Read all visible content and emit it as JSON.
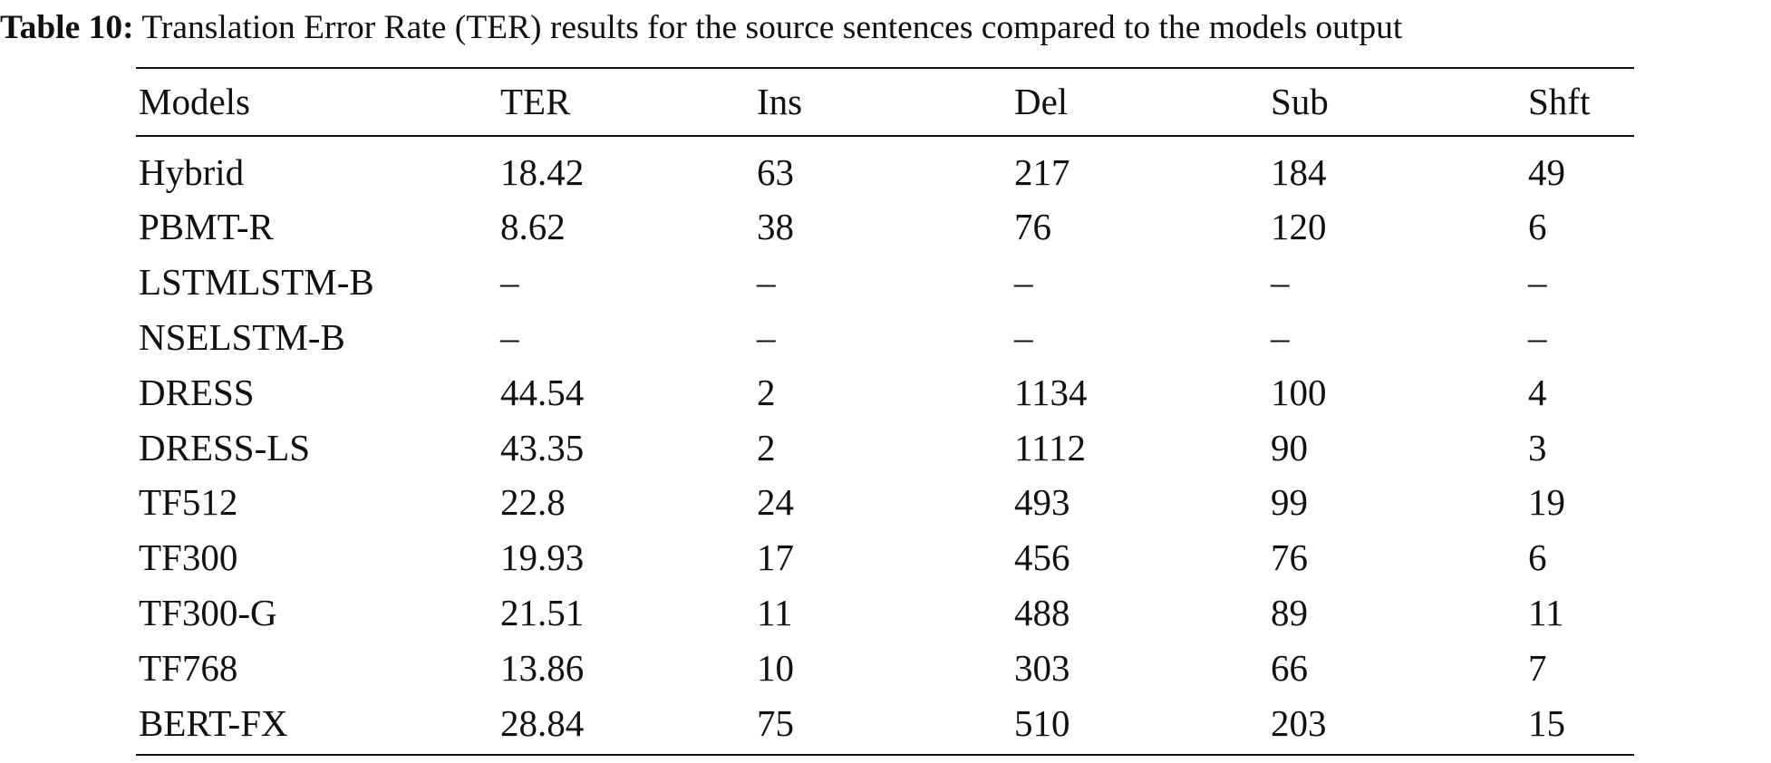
{
  "caption": {
    "label": "Table 10:",
    "text": "Translation Error Rate (TER) results for the source sentences compared to the models output"
  },
  "table": {
    "header": [
      "Models",
      "TER",
      "Ins",
      "Del",
      "Sub",
      "Shft"
    ],
    "rows": [
      [
        "Hybrid",
        "18.42",
        "63",
        "217",
        "184",
        "49"
      ],
      [
        "PBMT-R",
        "8.62",
        "38",
        "76",
        "120",
        "6"
      ],
      [
        "LSTMLSTM-B",
        "–",
        "–",
        "–",
        "–",
        "–"
      ],
      [
        "NSELSTM-B",
        "–",
        "–",
        "–",
        "–",
        "–"
      ],
      [
        "DRESS",
        "44.54",
        "2",
        "1134",
        "100",
        "4"
      ],
      [
        "DRESS-LS",
        "43.35",
        "2",
        "1112",
        "90",
        "3"
      ],
      [
        "TF512",
        "22.8",
        "24",
        "493",
        "99",
        "19"
      ],
      [
        "TF300",
        "19.93",
        "17",
        "456",
        "76",
        "6"
      ],
      [
        "TF300-G",
        "21.51",
        "11",
        "488",
        "89",
        "11"
      ],
      [
        "TF768",
        "13.86",
        "10",
        "303",
        "66",
        "7"
      ],
      [
        "BERT-FX",
        "28.84",
        "75",
        "510",
        "203",
        "15"
      ]
    ]
  }
}
